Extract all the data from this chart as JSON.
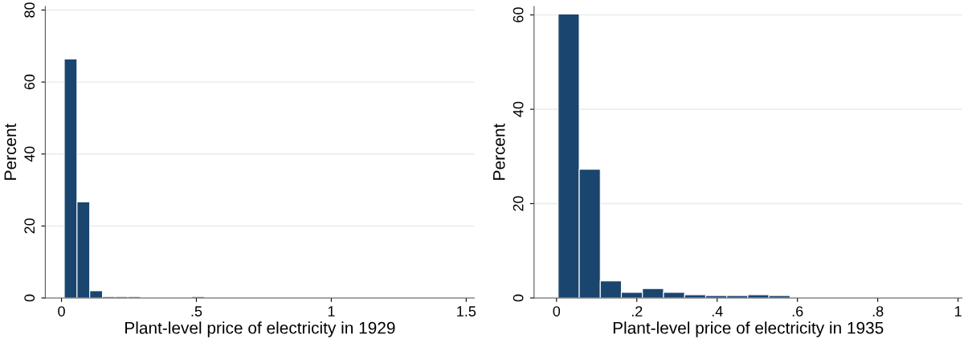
{
  "chart_data": [
    {
      "type": "histogram",
      "xlabel": "Plant-level price of electricity in 1929",
      "ylabel": "Percent",
      "color": "#1a456e",
      "bins": [
        0.0103,
        0.0575,
        0.1047,
        0.1519,
        0.1991,
        0.2463,
        0.2935,
        0.3407,
        0.3879,
        0.4351,
        0.4823,
        0.5295
      ],
      "values": [
        66.4,
        26.7,
        2.0,
        0.4,
        0.4,
        0.4,
        0,
        0,
        0,
        0,
        0.4
      ],
      "xlim": [
        -0.06,
        1.53
      ],
      "xticks": [
        0,
        {
          "value": 0.5,
          "label": ".5"
        },
        1,
        1.5
      ],
      "ylim": [
        0,
        81
      ],
      "yticks": [
        0,
        20,
        40,
        60,
        80
      ],
      "grid": "y"
    },
    {
      "type": "histogram",
      "xlabel": "Plant-level price of electricity in 1935",
      "ylabel": "Percent",
      "color": "#1a456e",
      "bins": [
        0.004,
        0.0565,
        0.109,
        0.1615,
        0.214,
        0.2665,
        0.319,
        0.3715,
        0.424,
        0.4765,
        0.529,
        0.5815
      ],
      "values": [
        60.2,
        27.3,
        3.6,
        1.2,
        2.0,
        1.2,
        0.7,
        0.5,
        0.5,
        0.7,
        0.5
      ],
      "xlim": [
        -0.056,
        1.01
      ],
      "xticks": [
        0,
        {
          "value": 0.2,
          "label": ".2"
        },
        {
          "value": 0.4,
          "label": ".4"
        },
        {
          "value": 0.6,
          "label": ".6"
        },
        {
          "value": 0.8,
          "label": ".8"
        },
        1
      ],
      "ylim": [
        0,
        61.8
      ],
      "yticks": [
        0,
        20,
        40,
        60
      ],
      "grid": "y"
    }
  ]
}
